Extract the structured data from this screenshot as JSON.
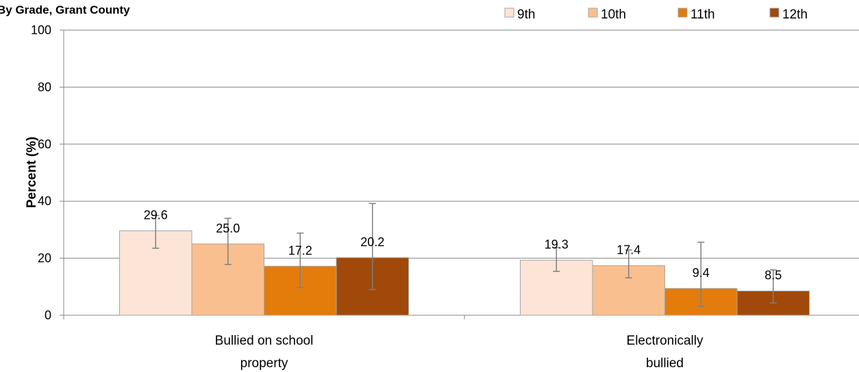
{
  "chart_data": {
    "type": "bar",
    "title": "By Grade, Grant County",
    "ylabel": "Percent (%)",
    "xlabel": "",
    "ylim": [
      0,
      100
    ],
    "yticks": [
      0,
      20,
      40,
      60,
      80,
      100
    ],
    "grid": true,
    "legend_position": "top-right",
    "categories": [
      "Bullied on school property",
      "Electronically bullied"
    ],
    "series": [
      {
        "name": "9th",
        "color": "#FCE4D6",
        "values": [
          29.6,
          19.3
        ],
        "value_labels": [
          "29.6",
          "19.3"
        ],
        "error_low": [
          23.5,
          15.4
        ],
        "error_high": [
          35.0,
          23.7
        ]
      },
      {
        "name": "10th",
        "color": "#F9BF8F",
        "values": [
          25.0,
          17.4
        ],
        "value_labels": [
          "25.0",
          "17.4"
        ],
        "error_low": [
          17.8,
          13.1
        ],
        "error_high": [
          34.0,
          22.9
        ]
      },
      {
        "name": "11th",
        "color": "#E47C0C",
        "values": [
          17.2,
          9.4
        ],
        "value_labels": [
          "17.2",
          "9.4"
        ],
        "error_low": [
          9.7,
          3.1
        ],
        "error_high": [
          28.8,
          25.6
        ]
      },
      {
        "name": "12th",
        "color": "#A0490A",
        "values": [
          20.2,
          8.5
        ],
        "value_labels": [
          "20.2",
          "8.5"
        ],
        "error_low": [
          9.0,
          4.3
        ],
        "error_high": [
          39.2,
          15.9
        ]
      }
    ]
  }
}
